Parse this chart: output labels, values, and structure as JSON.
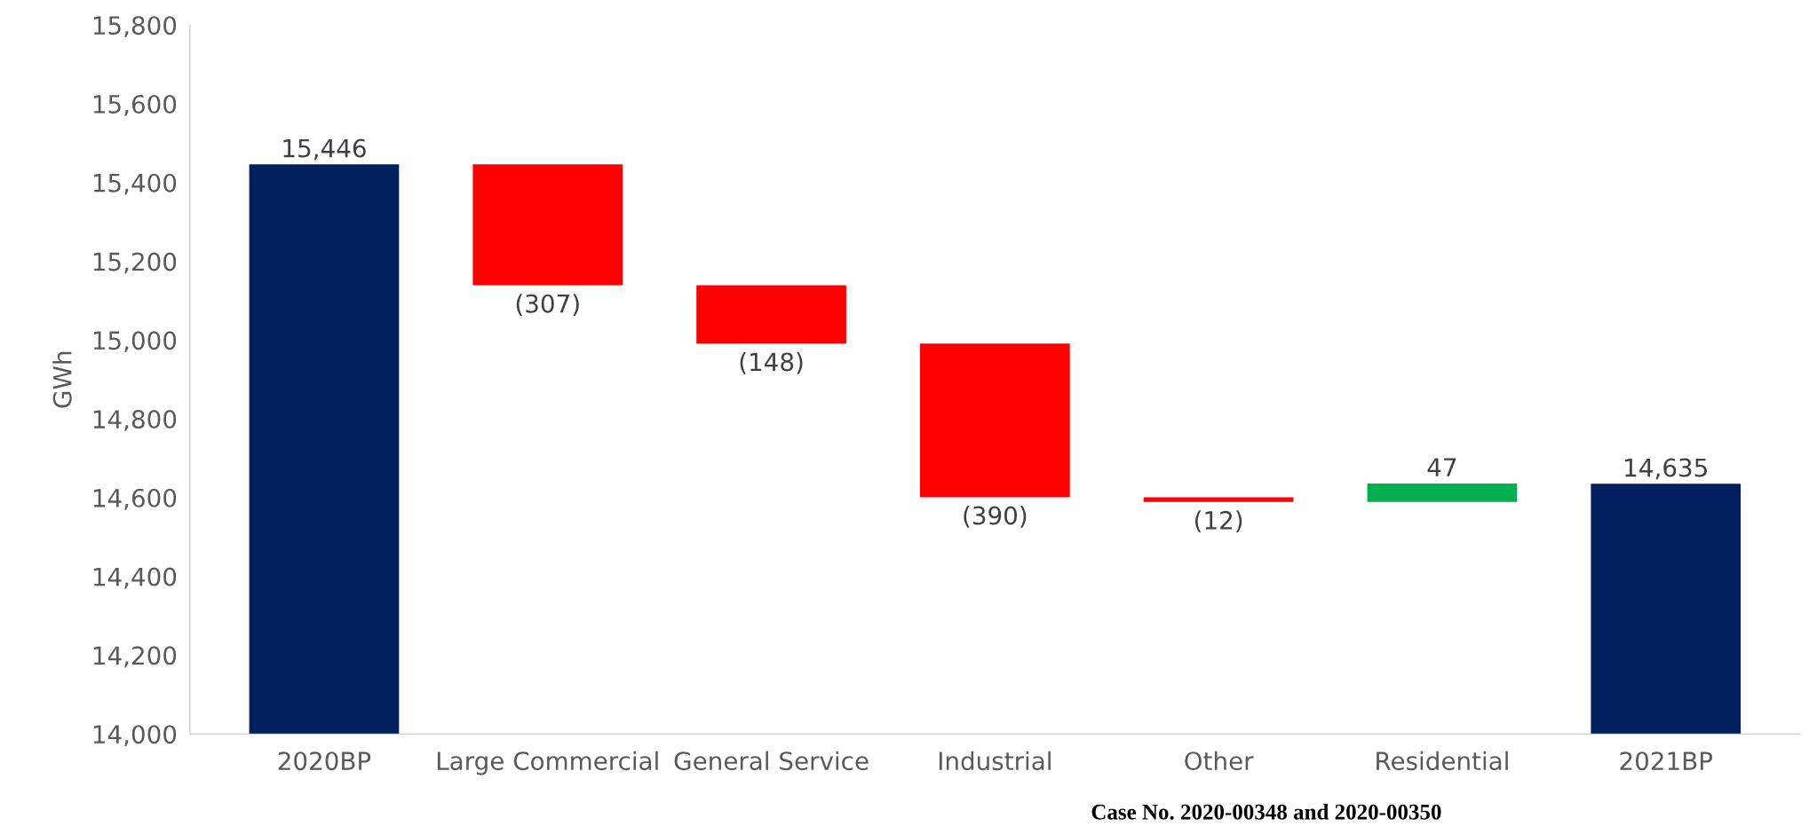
{
  "chart_data": {
    "type": "bar",
    "ylabel": "GWh",
    "categories": [
      "2020BP",
      "Large Commercial",
      "General Service",
      "Industrial",
      "Other",
      "Residential",
      "2021BP"
    ],
    "values": [
      15446,
      -307,
      -148,
      -390,
      -12,
      47,
      14635
    ],
    "base": [
      null,
      15446,
      15139,
      14991,
      14601,
      14589,
      null
    ],
    "colors": [
      "#002060",
      "#ff0000",
      "#ff0000",
      "#ff0000",
      "#ff0000",
      "#00b050",
      "#002060"
    ],
    "value_labels": [
      "15,446",
      "(307)",
      "(148)",
      "(390)",
      "(12)",
      "47",
      "14,635"
    ],
    "ylim": [
      14000,
      15800
    ],
    "yticks": [
      {
        "value": 14000,
        "label": "14,000"
      },
      {
        "value": 14200,
        "label": "14,200"
      },
      {
        "value": 14400,
        "label": "14,400"
      },
      {
        "value": 14600,
        "label": "14,600"
      },
      {
        "value": 14800,
        "label": "14,800"
      },
      {
        "value": 15000,
        "label": "15,000"
      },
      {
        "value": 15200,
        "label": "15,200"
      },
      {
        "value": 15400,
        "label": "15,400"
      },
      {
        "value": 15600,
        "label": "15,600"
      },
      {
        "value": 15800,
        "label": "15,800"
      }
    ],
    "grid": false,
    "annotations": [
      "Case No. 2020-00348 and 2020-00350"
    ]
  }
}
